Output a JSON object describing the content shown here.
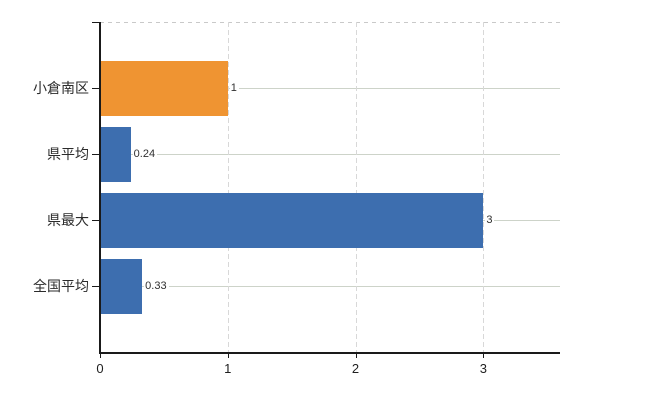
{
  "chart_data": {
    "type": "bar",
    "orientation": "horizontal",
    "title": "",
    "xlabel": "",
    "ylabel": "",
    "categories": [
      "小倉南区",
      "県平均",
      "県最大",
      "全国平均"
    ],
    "values": [
      1,
      0.24,
      3,
      0.33
    ],
    "data_labels": [
      "1",
      "0.24",
      "3",
      "0.33"
    ],
    "bar_colors": [
      "#EF9432",
      "#3D6EAF",
      "#3D6EAF",
      "#3D6EAF"
    ],
    "xlim": [
      0,
      3.6
    ],
    "xticks": [
      0,
      1,
      2,
      3
    ],
    "xtick_labels": [
      "0",
      "1",
      "2",
      "3"
    ],
    "grid": true,
    "legend_position": "none"
  },
  "colors": {
    "background": "#FFFFFF",
    "axis": "#1A1A1A",
    "text": "#2B2B2B",
    "value_label_text": "#303030",
    "grid_horizontal": "#CDD3C9",
    "grid_vertical": "#D8D8D8",
    "grid_top_dashed": "#C9C9C9",
    "bar_orange": "#EF9432",
    "bar_blue": "#3D6EAF"
  }
}
